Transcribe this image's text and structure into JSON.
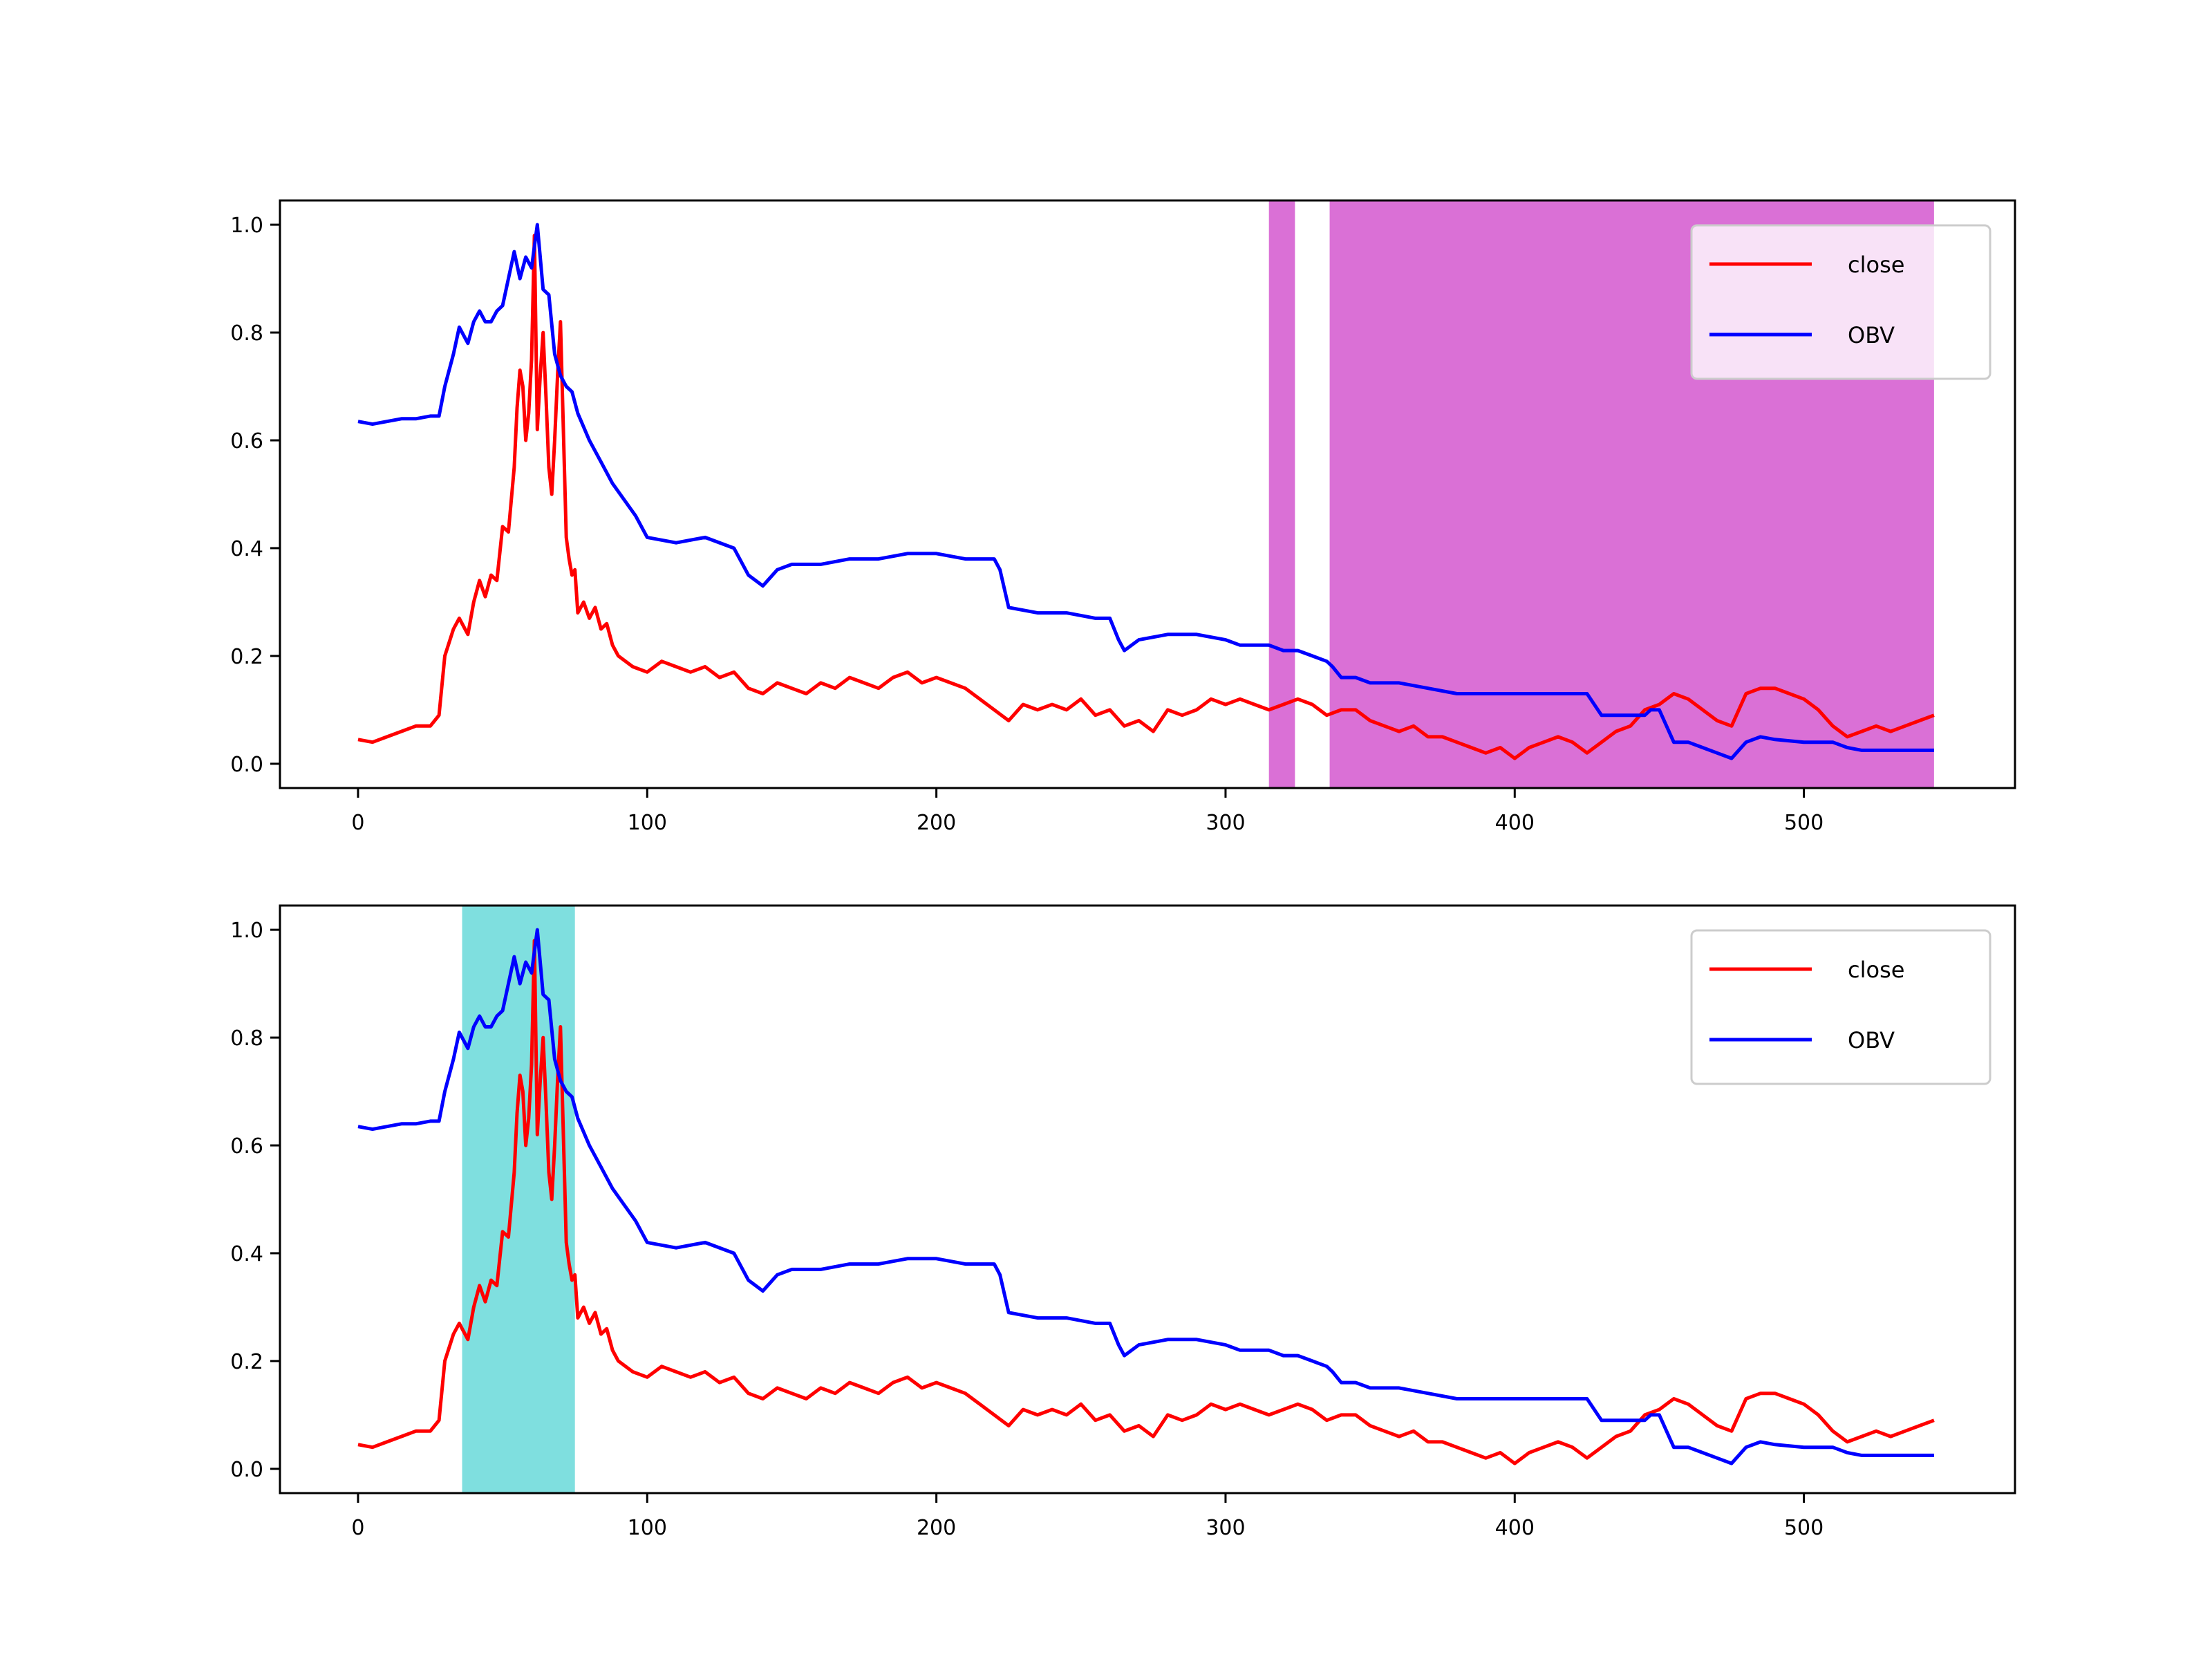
{
  "chart_data": [
    {
      "type": "line",
      "title": "",
      "xlabel": "",
      "ylabel": "",
      "xlim": [
        -27,
        573
      ],
      "ylim": [
        -0.045,
        1.045
      ],
      "xticks": [
        0,
        100,
        200,
        300,
        400,
        500
      ],
      "yticks": [
        0.0,
        0.2,
        0.4,
        0.6,
        0.8,
        1.0
      ],
      "xtick_labels": [
        "0",
        "100",
        "200",
        "300",
        "400",
        "500"
      ],
      "ytick_labels": [
        "0.0",
        "0.2",
        "0.4",
        "0.6",
        "0.8",
        "1.0"
      ],
      "legend": {
        "placement": "top-right",
        "entries": [
          "close",
          "OBV"
        ]
      },
      "shaded_regions": [
        {
          "x_start": 315,
          "x_end": 324,
          "color": "#da70d6"
        },
        {
          "x_start": 336,
          "x_end": 545,
          "color": "#da70d6"
        }
      ],
      "series": [
        {
          "name": "close",
          "color": "#ff0000",
          "x": [
            0,
            5,
            10,
            15,
            20,
            25,
            28,
            30,
            33,
            35,
            38,
            40,
            42,
            44,
            46,
            48,
            50,
            52,
            54,
            55,
            56,
            57,
            58,
            59,
            60,
            61,
            62,
            63,
            64,
            65,
            66,
            67,
            68,
            69,
            70,
            71,
            72,
            73,
            74,
            75,
            76,
            78,
            80,
            82,
            84,
            86,
            88,
            90,
            95,
            100,
            105,
            110,
            115,
            120,
            125,
            130,
            135,
            140,
            145,
            150,
            155,
            160,
            165,
            170,
            175,
            180,
            185,
            190,
            195,
            200,
            205,
            210,
            215,
            220,
            225,
            230,
            235,
            240,
            245,
            250,
            255,
            260,
            265,
            270,
            275,
            280,
            285,
            290,
            295,
            300,
            305,
            310,
            315,
            320,
            325,
            330,
            335,
            340,
            345,
            350,
            355,
            360,
            365,
            370,
            375,
            380,
            385,
            390,
            395,
            400,
            405,
            410,
            415,
            420,
            425,
            430,
            435,
            440,
            445,
            450,
            455,
            460,
            465,
            470,
            475,
            480,
            485,
            490,
            495,
            500,
            505,
            510,
            515,
            520,
            525,
            530,
            535,
            540,
            545
          ],
          "values": [
            0.045,
            0.04,
            0.05,
            0.06,
            0.07,
            0.07,
            0.09,
            0.2,
            0.25,
            0.27,
            0.24,
            0.3,
            0.34,
            0.31,
            0.35,
            0.34,
            0.44,
            0.43,
            0.55,
            0.66,
            0.73,
            0.7,
            0.6,
            0.65,
            0.75,
            0.98,
            0.62,
            0.72,
            0.8,
            0.68,
            0.55,
            0.5,
            0.6,
            0.72,
            0.82,
            0.62,
            0.42,
            0.38,
            0.35,
            0.36,
            0.28,
            0.3,
            0.27,
            0.29,
            0.25,
            0.26,
            0.22,
            0.2,
            0.18,
            0.17,
            0.19,
            0.18,
            0.17,
            0.18,
            0.16,
            0.17,
            0.14,
            0.13,
            0.15,
            0.14,
            0.13,
            0.15,
            0.14,
            0.16,
            0.15,
            0.14,
            0.16,
            0.17,
            0.15,
            0.16,
            0.15,
            0.14,
            0.12,
            0.1,
            0.08,
            0.11,
            0.1,
            0.11,
            0.1,
            0.12,
            0.09,
            0.1,
            0.07,
            0.08,
            0.06,
            0.1,
            0.09,
            0.1,
            0.12,
            0.11,
            0.12,
            0.11,
            0.1,
            0.11,
            0.12,
            0.11,
            0.09,
            0.1,
            0.1,
            0.08,
            0.07,
            0.06,
            0.07,
            0.05,
            0.05,
            0.04,
            0.03,
            0.02,
            0.03,
            0.01,
            0.03,
            0.04,
            0.05,
            0.04,
            0.02,
            0.04,
            0.06,
            0.07,
            0.1,
            0.11,
            0.13,
            0.12,
            0.1,
            0.08,
            0.07,
            0.13,
            0.14,
            0.14,
            0.13,
            0.12,
            0.1,
            0.07,
            0.05,
            0.06,
            0.07,
            0.06,
            0.07,
            0.08,
            0.09
          ]
        },
        {
          "name": "OBV",
          "color": "#0000ff",
          "x": [
            0,
            5,
            10,
            15,
            20,
            25,
            28,
            30,
            33,
            35,
            38,
            40,
            42,
            44,
            46,
            48,
            50,
            52,
            54,
            56,
            58,
            60,
            62,
            64,
            66,
            68,
            70,
            72,
            74,
            76,
            80,
            84,
            88,
            92,
            96,
            100,
            110,
            120,
            130,
            135,
            140,
            145,
            150,
            160,
            170,
            180,
            190,
            200,
            210,
            215,
            220,
            222,
            225,
            235,
            245,
            255,
            260,
            263,
            265,
            270,
            280,
            290,
            300,
            305,
            310,
            315,
            320,
            325,
            330,
            335,
            337,
            340,
            345,
            350,
            355,
            360,
            370,
            380,
            390,
            400,
            410,
            420,
            425,
            430,
            440,
            445,
            447,
            450,
            455,
            460,
            465,
            470,
            475,
            480,
            485,
            490,
            500,
            510,
            515,
            520,
            530,
            540,
            545
          ],
          "values": [
            0.635,
            0.63,
            0.635,
            0.64,
            0.64,
            0.645,
            0.645,
            0.7,
            0.76,
            0.81,
            0.78,
            0.82,
            0.84,
            0.82,
            0.82,
            0.84,
            0.85,
            0.9,
            0.95,
            0.9,
            0.94,
            0.92,
            1.0,
            0.88,
            0.87,
            0.76,
            0.72,
            0.7,
            0.69,
            0.65,
            0.6,
            0.56,
            0.52,
            0.49,
            0.46,
            0.42,
            0.41,
            0.42,
            0.4,
            0.35,
            0.33,
            0.36,
            0.37,
            0.37,
            0.38,
            0.38,
            0.39,
            0.39,
            0.38,
            0.38,
            0.38,
            0.36,
            0.29,
            0.28,
            0.28,
            0.27,
            0.27,
            0.23,
            0.21,
            0.23,
            0.24,
            0.24,
            0.23,
            0.22,
            0.22,
            0.22,
            0.21,
            0.21,
            0.2,
            0.19,
            0.18,
            0.16,
            0.16,
            0.15,
            0.15,
            0.15,
            0.14,
            0.13,
            0.13,
            0.13,
            0.13,
            0.13,
            0.13,
            0.09,
            0.09,
            0.09,
            0.1,
            0.1,
            0.04,
            0.04,
            0.03,
            0.02,
            0.01,
            0.04,
            0.05,
            0.045,
            0.04,
            0.04,
            0.03,
            0.025,
            0.025,
            0.025,
            0.025
          ]
        }
      ]
    },
    {
      "type": "line",
      "title": "",
      "xlabel": "",
      "ylabel": "",
      "xlim": [
        -27,
        573
      ],
      "ylim": [
        -0.045,
        1.045
      ],
      "xticks": [
        0,
        100,
        200,
        300,
        400,
        500
      ],
      "yticks": [
        0.0,
        0.2,
        0.4,
        0.6,
        0.8,
        1.0
      ],
      "xtick_labels": [
        "0",
        "100",
        "200",
        "300",
        "400",
        "500"
      ],
      "ytick_labels": [
        "0.0",
        "0.2",
        "0.4",
        "0.6",
        "0.8",
        "1.0"
      ],
      "legend": {
        "placement": "top-right",
        "entries": [
          "close",
          "OBV"
        ]
      },
      "shaded_regions": [
        {
          "x_start": 36,
          "x_end": 75,
          "color": "#7fdfdf"
        }
      ],
      "series": [
        {
          "name": "close",
          "color": "#ff0000",
          "x": [
            0,
            5,
            10,
            15,
            20,
            25,
            28,
            30,
            33,
            35,
            38,
            40,
            42,
            44,
            46,
            48,
            50,
            52,
            54,
            55,
            56,
            57,
            58,
            59,
            60,
            61,
            62,
            63,
            64,
            65,
            66,
            67,
            68,
            69,
            70,
            71,
            72,
            73,
            74,
            75,
            76,
            78,
            80,
            82,
            84,
            86,
            88,
            90,
            95,
            100,
            105,
            110,
            115,
            120,
            125,
            130,
            135,
            140,
            145,
            150,
            155,
            160,
            165,
            170,
            175,
            180,
            185,
            190,
            195,
            200,
            205,
            210,
            215,
            220,
            225,
            230,
            235,
            240,
            245,
            250,
            255,
            260,
            265,
            270,
            275,
            280,
            285,
            290,
            295,
            300,
            305,
            310,
            315,
            320,
            325,
            330,
            335,
            340,
            345,
            350,
            355,
            360,
            365,
            370,
            375,
            380,
            385,
            390,
            395,
            400,
            405,
            410,
            415,
            420,
            425,
            430,
            435,
            440,
            445,
            450,
            455,
            460,
            465,
            470,
            475,
            480,
            485,
            490,
            495,
            500,
            505,
            510,
            515,
            520,
            525,
            530,
            535,
            540,
            545
          ],
          "values": [
            0.045,
            0.04,
            0.05,
            0.06,
            0.07,
            0.07,
            0.09,
            0.2,
            0.25,
            0.27,
            0.24,
            0.3,
            0.34,
            0.31,
            0.35,
            0.34,
            0.44,
            0.43,
            0.55,
            0.66,
            0.73,
            0.7,
            0.6,
            0.65,
            0.75,
            0.98,
            0.62,
            0.72,
            0.8,
            0.68,
            0.55,
            0.5,
            0.6,
            0.72,
            0.82,
            0.62,
            0.42,
            0.38,
            0.35,
            0.36,
            0.28,
            0.3,
            0.27,
            0.29,
            0.25,
            0.26,
            0.22,
            0.2,
            0.18,
            0.17,
            0.19,
            0.18,
            0.17,
            0.18,
            0.16,
            0.17,
            0.14,
            0.13,
            0.15,
            0.14,
            0.13,
            0.15,
            0.14,
            0.16,
            0.15,
            0.14,
            0.16,
            0.17,
            0.15,
            0.16,
            0.15,
            0.14,
            0.12,
            0.1,
            0.08,
            0.11,
            0.1,
            0.11,
            0.1,
            0.12,
            0.09,
            0.1,
            0.07,
            0.08,
            0.06,
            0.1,
            0.09,
            0.1,
            0.12,
            0.11,
            0.12,
            0.11,
            0.1,
            0.11,
            0.12,
            0.11,
            0.09,
            0.1,
            0.1,
            0.08,
            0.07,
            0.06,
            0.07,
            0.05,
            0.05,
            0.04,
            0.03,
            0.02,
            0.03,
            0.01,
            0.03,
            0.04,
            0.05,
            0.04,
            0.02,
            0.04,
            0.06,
            0.07,
            0.1,
            0.11,
            0.13,
            0.12,
            0.1,
            0.08,
            0.07,
            0.13,
            0.14,
            0.14,
            0.13,
            0.12,
            0.1,
            0.07,
            0.05,
            0.06,
            0.07,
            0.06,
            0.07,
            0.08,
            0.09
          ]
        },
        {
          "name": "OBV",
          "color": "#0000ff",
          "x": [
            0,
            5,
            10,
            15,
            20,
            25,
            28,
            30,
            33,
            35,
            38,
            40,
            42,
            44,
            46,
            48,
            50,
            52,
            54,
            56,
            58,
            60,
            62,
            64,
            66,
            68,
            70,
            72,
            74,
            76,
            80,
            84,
            88,
            92,
            96,
            100,
            110,
            120,
            130,
            135,
            140,
            145,
            150,
            160,
            170,
            180,
            190,
            200,
            210,
            215,
            220,
            222,
            225,
            235,
            245,
            255,
            260,
            263,
            265,
            270,
            280,
            290,
            300,
            305,
            310,
            315,
            320,
            325,
            330,
            335,
            337,
            340,
            345,
            350,
            355,
            360,
            370,
            380,
            390,
            400,
            410,
            420,
            425,
            430,
            440,
            445,
            447,
            450,
            455,
            460,
            465,
            470,
            475,
            480,
            485,
            490,
            500,
            510,
            515,
            520,
            530,
            540,
            545
          ],
          "values": [
            0.635,
            0.63,
            0.635,
            0.64,
            0.64,
            0.645,
            0.645,
            0.7,
            0.76,
            0.81,
            0.78,
            0.82,
            0.84,
            0.82,
            0.82,
            0.84,
            0.85,
            0.9,
            0.95,
            0.9,
            0.94,
            0.92,
            1.0,
            0.88,
            0.87,
            0.76,
            0.72,
            0.7,
            0.69,
            0.65,
            0.6,
            0.56,
            0.52,
            0.49,
            0.46,
            0.42,
            0.41,
            0.42,
            0.4,
            0.35,
            0.33,
            0.36,
            0.37,
            0.37,
            0.38,
            0.38,
            0.39,
            0.39,
            0.38,
            0.38,
            0.38,
            0.36,
            0.29,
            0.28,
            0.28,
            0.27,
            0.27,
            0.23,
            0.21,
            0.23,
            0.24,
            0.24,
            0.23,
            0.22,
            0.22,
            0.22,
            0.21,
            0.21,
            0.2,
            0.19,
            0.18,
            0.16,
            0.16,
            0.15,
            0.15,
            0.15,
            0.14,
            0.13,
            0.13,
            0.13,
            0.13,
            0.13,
            0.13,
            0.09,
            0.09,
            0.09,
            0.1,
            0.1,
            0.04,
            0.04,
            0.03,
            0.02,
            0.01,
            0.04,
            0.05,
            0.045,
            0.04,
            0.04,
            0.03,
            0.025,
            0.025,
            0.025,
            0.025
          ]
        }
      ]
    }
  ]
}
